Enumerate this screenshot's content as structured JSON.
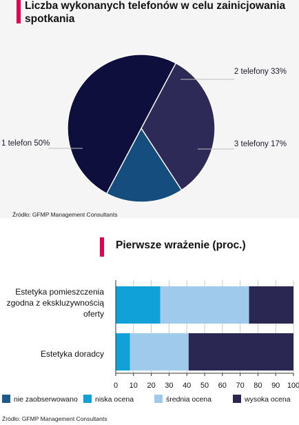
{
  "source_label": "Źródło: GFMP Management Consultants",
  "colors": {
    "accent": "#e4004f",
    "pie": [
      "#0f0f3d",
      "#2e2a58",
      "#154d7f"
    ],
    "bars": [
      "#1f5a8f",
      "#0fa1d8",
      "#9fcaec",
      "#2a2752"
    ]
  },
  "chart_data": [
    {
      "type": "pie",
      "title": "Liczba wykonanych telefonów w celu zainicjowania spotkania",
      "source": "Źródło: GFMP Management Consultants",
      "slices": [
        {
          "label": "1 telefon 50%",
          "value": 50
        },
        {
          "label": "2 telefony 33%",
          "value": 33
        },
        {
          "label": "3 telefony 17%",
          "value": 17
        }
      ]
    },
    {
      "type": "bar",
      "orientation": "horizontal",
      "stacked": true,
      "title": "Pierwsze wrażenie (proc.)",
      "source": "Źródło: GFMP Management Consultants",
      "categories": [
        "Estetyka pomieszczenia zgodna z ekskluzywnością oferty",
        "Estetyka doradcy"
      ],
      "series": [
        {
          "name": "nie zaobserwowano",
          "values": [
            0,
            0
          ]
        },
        {
          "name": "niska ocena",
          "values": [
            25,
            8
          ]
        },
        {
          "name": "średnia ocena",
          "values": [
            50,
            33
          ]
        },
        {
          "name": "wysoka ocena",
          "values": [
            25,
            59
          ]
        }
      ],
      "xlim": [
        0,
        100
      ],
      "xticks": [
        "0",
        "10",
        "20",
        "30",
        "40",
        "50",
        "60",
        "70",
        "80",
        "90",
        "100"
      ],
      "grid": true,
      "legend": "bottom"
    }
  ]
}
